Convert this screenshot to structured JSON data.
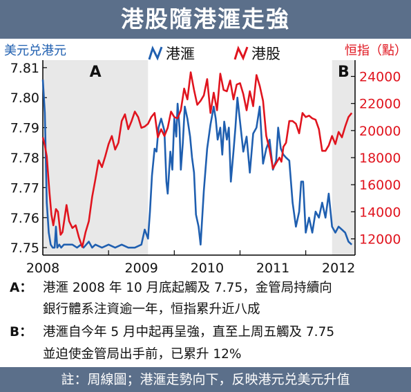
{
  "title": "港股隨港滙走強",
  "footer": "註：周線圖；港滙走勢向下，反映港元兑美元升值",
  "notes": [
    {
      "key": "A：",
      "lines": [
        "港滙 2008 年 10 月底起觸及 7.75，金管局持續向",
        "銀行體系注資逾一年，恒指累升近八成"
      ]
    },
    {
      "key": "B：",
      "lines": [
        "港滙自今年 5 月中起再呈強，直至上周五觸及 7.75",
        "並迫使金管局出手前，已累升 12%"
      ]
    }
  ],
  "colors": {
    "hkd": "#1f5fb0",
    "hsi": "#e0141e",
    "band": "#e8e8e8",
    "title_bg": "#5b6f8a"
  },
  "chart_data": {
    "type": "line",
    "title": "港股隨港滙走強",
    "left_axis_label": "美元兑港元",
    "right_axis_label": "恒指（點）",
    "x_ticks": [
      "2008",
      "2009",
      "2010",
      "2011",
      "2012"
    ],
    "x_range": [
      2008.0,
      2012.75
    ],
    "left_ylim": [
      7.7475,
      7.8125
    ],
    "left_ticks": [
      "7.75",
      "7.76",
      "7.77",
      "7.78",
      "7.79",
      "7.80",
      "7.81"
    ],
    "right_ylim": [
      10800,
      25200
    ],
    "right_ticks": [
      "12000",
      "14000",
      "16000",
      "18000",
      "20000",
      "22000",
      "24000"
    ],
    "shaded_regions": [
      {
        "label": "A",
        "x": [
          2008.0,
          2009.6
        ]
      },
      {
        "label": "B",
        "x": [
          2012.4,
          2012.75
        ]
      }
    ],
    "legend": {
      "placement": "top-center"
    },
    "series": [
      {
        "name": "港滙",
        "axis": "left",
        "x": [
          2008.0,
          2008.03,
          2008.06,
          2008.09,
          2008.12,
          2008.15,
          2008.18,
          2008.2,
          2008.22,
          2008.25,
          2008.28,
          2008.32,
          2008.38,
          2008.45,
          2008.52,
          2008.58,
          2008.62,
          2008.66,
          2008.7,
          2008.75,
          2008.8,
          2008.9,
          2009.0,
          2009.1,
          2009.2,
          2009.3,
          2009.4,
          2009.5,
          2009.55,
          2009.6,
          2009.63,
          2009.66,
          2009.7,
          2009.73,
          2009.76,
          2009.8,
          2009.85,
          2009.88,
          2009.9,
          2009.92,
          2009.94,
          2009.97,
          2010.0,
          2010.03,
          2010.05,
          2010.08,
          2010.1,
          2010.13,
          2010.16,
          2010.2,
          2010.24,
          2010.27,
          2010.3,
          2010.33,
          2010.37,
          2010.4,
          2010.45,
          2010.5,
          2010.55,
          2010.6,
          2010.63,
          2010.66,
          2010.7,
          2010.73,
          2010.76,
          2010.8,
          2010.83,
          2010.86,
          2010.9,
          2010.93,
          2010.96,
          2011.0,
          2011.05,
          2011.1,
          2011.15,
          2011.2,
          2011.25,
          2011.3,
          2011.35,
          2011.4,
          2011.45,
          2011.5,
          2011.55,
          2011.58,
          2011.62,
          2011.66,
          2011.7,
          2011.75,
          2011.8,
          2011.85,
          2011.9,
          2011.93,
          2011.96,
          2012.0,
          2012.05,
          2012.1,
          2012.15,
          2012.2,
          2012.25,
          2012.3,
          2012.35,
          2012.4,
          2012.45,
          2012.5,
          2012.55,
          2012.6,
          2012.65,
          2012.7
        ],
        "values": [
          7.806,
          7.795,
          7.765,
          7.755,
          7.751,
          7.75,
          7.75,
          7.757,
          7.75,
          7.751,
          7.75,
          7.751,
          7.751,
          7.751,
          7.75,
          7.751,
          7.75,
          7.751,
          7.752,
          7.75,
          7.751,
          7.75,
          7.751,
          7.75,
          7.751,
          7.75,
          7.75,
          7.751,
          7.756,
          7.753,
          7.762,
          7.774,
          7.783,
          7.782,
          7.79,
          7.793,
          7.789,
          7.772,
          7.768,
          7.775,
          7.782,
          7.776,
          7.793,
          7.787,
          7.798,
          7.79,
          7.776,
          7.785,
          7.797,
          7.793,
          7.787,
          7.78,
          7.775,
          7.761,
          7.757,
          7.751,
          7.769,
          7.783,
          7.791,
          7.797,
          7.793,
          7.786,
          7.79,
          7.781,
          7.792,
          7.786,
          7.79,
          7.772,
          7.782,
          7.79,
          7.8,
          7.792,
          7.782,
          7.787,
          7.775,
          7.788,
          7.79,
          7.797,
          7.778,
          7.783,
          7.786,
          7.776,
          7.779,
          7.79,
          7.783,
          7.781,
          7.78,
          7.779,
          7.765,
          7.757,
          7.762,
          7.772,
          7.772,
          7.755,
          7.76,
          7.755,
          7.762,
          7.76,
          7.765,
          7.76,
          7.768,
          7.757,
          7.755,
          7.757,
          7.756,
          7.755,
          7.752,
          7.751
        ]
      },
      {
        "name": "港股",
        "axis": "right",
        "x": [
          2008.0,
          2008.03,
          2008.06,
          2008.1,
          2008.13,
          2008.16,
          2008.2,
          2008.23,
          2008.27,
          2008.3,
          2008.33,
          2008.36,
          2008.4,
          2008.45,
          2008.5,
          2008.55,
          2008.6,
          2008.65,
          2008.7,
          2008.75,
          2008.8,
          2008.85,
          2008.9,
          2008.95,
          2009.0,
          2009.05,
          2009.1,
          2009.15,
          2009.2,
          2009.25,
          2009.3,
          2009.35,
          2009.4,
          2009.45,
          2009.5,
          2009.55,
          2009.6,
          2009.65,
          2009.7,
          2009.75,
          2009.8,
          2009.85,
          2009.9,
          2009.95,
          2010.0,
          2010.05,
          2010.1,
          2010.15,
          2010.2,
          2010.25,
          2010.3,
          2010.35,
          2010.4,
          2010.45,
          2010.5,
          2010.55,
          2010.6,
          2010.65,
          2010.7,
          2010.75,
          2010.8,
          2010.85,
          2010.9,
          2010.95,
          2011.0,
          2011.05,
          2011.1,
          2011.15,
          2011.2,
          2011.25,
          2011.3,
          2011.35,
          2011.4,
          2011.45,
          2011.5,
          2011.55,
          2011.6,
          2011.63,
          2011.66,
          2011.7,
          2011.75,
          2011.8,
          2011.85,
          2011.9,
          2011.95,
          2012.0,
          2012.05,
          2012.1,
          2012.15,
          2012.2,
          2012.25,
          2012.3,
          2012.35,
          2012.4,
          2012.45,
          2012.5,
          2012.55,
          2012.6,
          2012.65,
          2012.7
        ],
        "values": [
          19500,
          18900,
          18100,
          15500,
          13800,
          13000,
          14200,
          14000,
          12300,
          12500,
          13500,
          14500,
          13300,
          12800,
          13000,
          12100,
          11400,
          12500,
          13300,
          15100,
          16400,
          17800,
          17300,
          18100,
          19000,
          19600,
          18600,
          19100,
          20700,
          21200,
          20100,
          20700,
          21400,
          21000,
          20200,
          20300,
          20500,
          21000,
          21300,
          19500,
          20100,
          19600,
          20200,
          21400,
          21000,
          20900,
          21500,
          23100,
          22300,
          24300,
          23000,
          21900,
          22200,
          22600,
          23800,
          21300,
          22800,
          21500,
          24200,
          23000,
          22900,
          23700,
          22300,
          23400,
          23500,
          22700,
          21500,
          22900,
          21800,
          24100,
          23300,
          22200,
          19600,
          18600,
          17200,
          17600,
          18000,
          17700,
          18800,
          19100,
          20700,
          20700,
          20500,
          19800,
          21300,
          21000,
          21100,
          20900,
          20800,
          20100,
          18500,
          18500,
          18900,
          19600,
          19000,
          19900,
          19500,
          20300,
          21000,
          21300
        ]
      }
    ]
  }
}
